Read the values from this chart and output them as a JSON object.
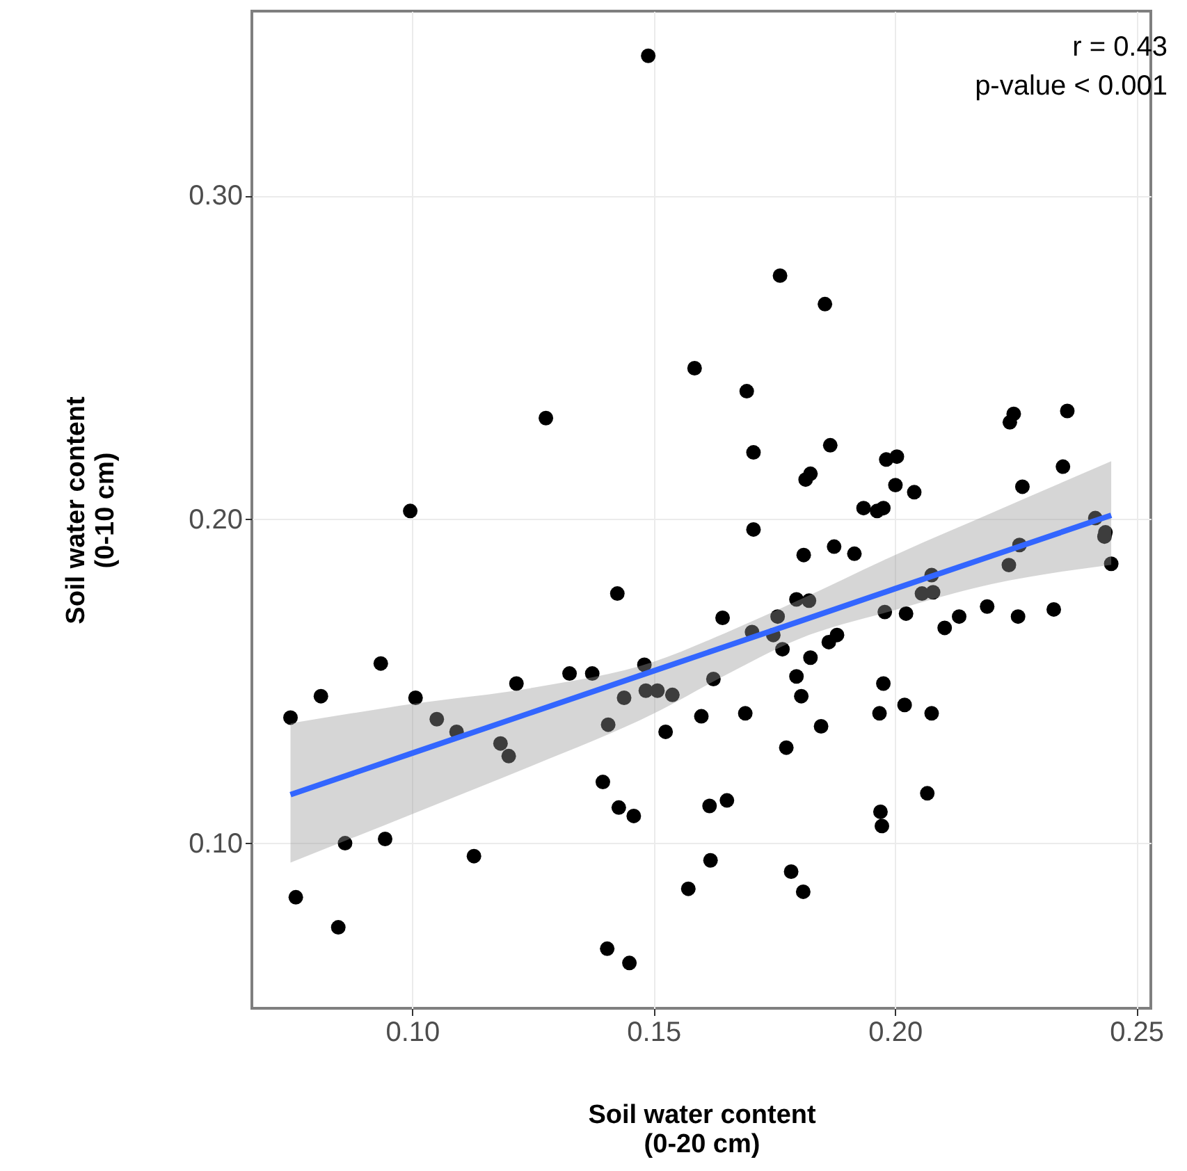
{
  "chart_data": {
    "type": "scatter",
    "xlabel": "Soil water content\n(0-20 cm)",
    "ylabel": "Soil water content\n(0-10 cm)",
    "xlim": [
      0.0668,
      0.253
    ],
    "ylim": [
      0.049,
      0.357
    ],
    "xticks": [
      {
        "value": 0.1,
        "label": "0.10"
      },
      {
        "value": 0.15,
        "label": "0.15"
      },
      {
        "value": 0.2,
        "label": "0.20"
      },
      {
        "value": 0.25,
        "label": "0.25"
      }
    ],
    "yticks": [
      {
        "value": 0.1,
        "label": "0.10"
      },
      {
        "value": 0.2,
        "label": "0.20"
      },
      {
        "value": 0.3,
        "label": "0.30"
      }
    ],
    "grid": true,
    "annotations": [
      "r = 0.43",
      "p-value < 0.001"
    ],
    "series": [
      {
        "marker": "circle",
        "color": "#000000",
        "x": [
          0.0748,
          0.0759,
          0.0811,
          0.0847,
          0.0861,
          0.0935,
          0.0944,
          0.0996,
          0.1007,
          0.1051,
          0.1092,
          0.1128,
          0.1183,
          0.12,
          0.1216,
          0.1277,
          0.1326,
          0.1373,
          0.1395,
          0.1406,
          0.1404,
          0.1425,
          0.1428,
          0.1439,
          0.145,
          0.1459,
          0.1481,
          0.1489,
          0.1484,
          0.1508,
          0.1525,
          0.1539,
          0.1585,
          0.1572,
          0.1599,
          0.1616,
          0.1618,
          0.1624,
          0.1643,
          0.1652,
          0.169,
          0.1693,
          0.1707,
          0.1707,
          0.1704,
          0.1748,
          0.1757,
          0.1762,
          0.1767,
          0.1775,
          0.1785,
          0.1796,
          0.1796,
          0.1806,
          0.181,
          0.1811,
          0.1815,
          0.1825,
          0.1822,
          0.1825,
          0.1847,
          0.1855,
          0.1863,
          0.1866,
          0.1874,
          0.188,
          0.1916,
          0.1935,
          0.1963,
          0.1968,
          0.197,
          0.1973,
          0.1976,
          0.1976,
          0.1979,
          0.1982,
          0.2004,
          0.2001,
          0.202,
          0.2023,
          0.204,
          0.2056,
          0.2067,
          0.2076,
          0.2079,
          0.2076,
          0.2103,
          0.2133,
          0.2191,
          0.2238,
          0.2246,
          0.2236,
          0.2255,
          0.2258,
          0.2264,
          0.2329,
          0.2348,
          0.2357,
          0.2415,
          0.2434,
          0.2436,
          0.2448
        ],
        "values": [
          0.1388,
          0.0833,
          0.1454,
          0.074,
          0.1,
          0.1555,
          0.1013,
          0.2026,
          0.1449,
          0.1383,
          0.1344,
          0.096,
          0.1308,
          0.1269,
          0.1493,
          0.2313,
          0.1524,
          0.1524,
          0.1189,
          0.1366,
          0.0674,
          0.1771,
          0.111,
          0.1449,
          0.063,
          0.1084,
          0.1551,
          0.3432,
          0.1471,
          0.1471,
          0.1344,
          0.1458,
          0.2467,
          0.0859,
          0.1392,
          0.1115,
          0.0947,
          0.1507,
          0.1696,
          0.1132,
          0.1401,
          0.2396,
          0.2207,
          0.1969,
          0.1652,
          0.1643,
          0.17,
          0.2753,
          0.1599,
          0.1295,
          0.0912,
          0.1753,
          0.1515,
          0.1454,
          0.085,
          0.189,
          0.2123,
          0.2141,
          0.1749,
          0.1573,
          0.1361,
          0.2665,
          0.1621,
          0.2229,
          0.1916,
          0.1643,
          0.1894,
          0.2035,
          0.2026,
          0.1401,
          0.1097,
          0.1053,
          0.2035,
          0.1493,
          0.1714,
          0.2185,
          0.2194,
          0.2106,
          0.1427,
          0.1709,
          0.2084,
          0.1771,
          0.1154,
          0.1401,
          0.1775,
          0.1828,
          0.1665,
          0.17,
          0.1731,
          0.23,
          0.2326,
          0.1859,
          0.17,
          0.1921,
          0.2101,
          0.1722,
          0.2163,
          0.2335,
          0.2004,
          0.1947,
          0.196,
          0.1863
        ]
      },
      {
        "type": "line",
        "line_style": "solid",
        "color": "#3366ff",
        "x": [
          0.0748,
          0.1,
          0.125,
          0.15,
          0.165,
          0.18,
          0.2,
          0.22,
          0.2448
        ],
        "values": [
          0.115,
          0.1278,
          0.1405,
          0.1532,
          0.1608,
          0.1684,
          0.1786,
          0.1887,
          0.2013
        ],
        "lower": [
          0.094,
          0.109,
          0.124,
          0.14,
          0.152,
          0.163,
          0.172,
          0.18,
          0.186
        ],
        "upper": [
          0.137,
          0.143,
          0.148,
          0.156,
          0.165,
          0.175,
          0.189,
          0.202,
          0.218
        ]
      }
    ]
  }
}
